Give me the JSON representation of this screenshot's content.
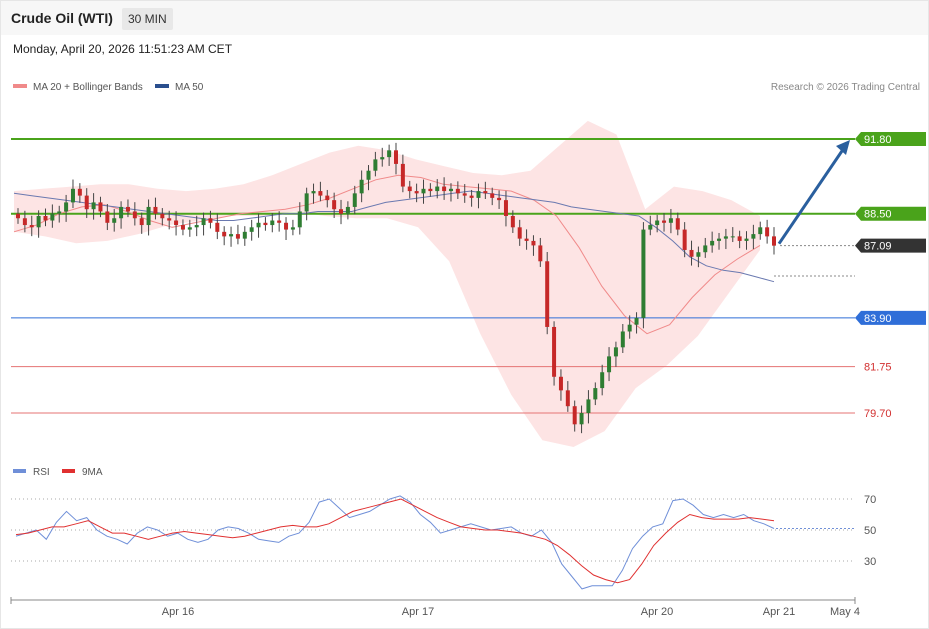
{
  "header": {
    "title": "Crude Oil (WTI)",
    "timeframe": "30 MIN",
    "datetime": "Monday, April 20, 2026 11:51:23 AM CET"
  },
  "legend": {
    "ma20_label": "MA 20 + Bollinger Bands",
    "ma50_label": "MA 50",
    "copyright": "Research © 2026 Trading Central",
    "rsi_label": "RSI",
    "rsi_ma_label": "9MA"
  },
  "colors": {
    "resistance": "#4aa31b",
    "support_blue": "#2f6ed8",
    "support_red": "#e57373",
    "bull_candle": "#2e7d32",
    "bear_candle": "#c62828",
    "bollinger_fill": "#fde4e4",
    "ma20": "#f08a8a",
    "ma50": "#6a79b0",
    "arrow": "#2a5f9e",
    "rsi_line": "#6f8fd8",
    "rsi_ma_line": "#e03030"
  },
  "chart_data": [
    {
      "type": "candlestick",
      "title": "Crude Oil (WTI)",
      "ylim": [
        77.5,
        93.0
      ],
      "x_ticks": [
        "Apr 16",
        "Apr 17",
        "Apr 20",
        "Apr 21",
        "May 4"
      ],
      "levels": [
        {
          "value": 91.8,
          "label": "91.80",
          "kind": "resistance"
        },
        {
          "value": 88.5,
          "label": "88.50",
          "kind": "resistance"
        },
        {
          "value": 87.09,
          "label": "87.09",
          "kind": "last_price"
        },
        {
          "value": 83.9,
          "label": "83.90",
          "kind": "support"
        },
        {
          "value": 81.75,
          "label": "81.75",
          "kind": "support"
        },
        {
          "value": 79.7,
          "label": "79.70",
          "kind": "support"
        }
      ],
      "closes": [
        88.3,
        88.0,
        87.9,
        88.4,
        88.2,
        88.5,
        88.6,
        89.0,
        89.6,
        89.3,
        88.7,
        89.0,
        88.6,
        88.1,
        88.3,
        88.8,
        88.6,
        88.3,
        88.0,
        88.8,
        88.5,
        88.3,
        88.2,
        88.0,
        87.8,
        87.9,
        88.0,
        88.3,
        88.1,
        87.7,
        87.5,
        87.6,
        87.4,
        87.7,
        87.9,
        88.1,
        88.0,
        88.2,
        88.1,
        87.8,
        87.9,
        88.6,
        89.4,
        89.5,
        89.3,
        89.1,
        88.7,
        88.5,
        88.8,
        89.4,
        90.0,
        90.4,
        90.9,
        91.0,
        91.3,
        90.7,
        89.7,
        89.5,
        89.4,
        89.6,
        89.5,
        89.7,
        89.5,
        89.6,
        89.4,
        89.3,
        89.2,
        89.5,
        89.4,
        89.2,
        89.1,
        88.4,
        87.9,
        87.4,
        87.3,
        87.1,
        86.4,
        83.5,
        81.3,
        80.7,
        80.0,
        79.2,
        79.7,
        80.3,
        80.8,
        81.5,
        82.2,
        82.6,
        83.3,
        83.6,
        83.9,
        87.8,
        88.0,
        88.2,
        88.1,
        88.3,
        87.8,
        86.9,
        86.6,
        86.8,
        87.1,
        87.3,
        87.4,
        87.5,
        87.5,
        87.3,
        87.4,
        87.6,
        87.9,
        87.5,
        87.09
      ],
      "ma50": [
        89.4,
        89.3,
        89.2,
        89.1,
        89.0,
        88.9,
        88.8,
        88.7,
        88.6,
        88.5,
        88.4,
        88.3,
        88.2,
        88.2,
        88.3,
        88.4,
        88.5,
        88.5,
        88.6,
        88.6,
        88.6,
        88.8,
        89.0,
        89.1,
        89.2,
        89.3,
        89.4,
        89.5,
        89.4,
        89.3,
        89.2,
        89.1,
        89.0,
        88.8,
        88.7,
        88.6,
        88.5,
        88.4,
        87.9,
        87.3,
        86.6,
        86.2,
        86.0,
        85.9,
        85.7,
        85.5
      ],
      "ma20": [
        87.7,
        88.0,
        88.5,
        88.8,
        88.9,
        88.6,
        88.2,
        87.9,
        88.1,
        88.3,
        88.5,
        88.6,
        88.7,
        88.9,
        89.2,
        89.6,
        90.0,
        90.2,
        90.1,
        89.8,
        89.7,
        89.6,
        89.5,
        89.1,
        88.4,
        87.0,
        85.3,
        84.0,
        83.2,
        83.6,
        84.8,
        85.8,
        86.5,
        87.1
      ],
      "bb_upper": [
        89.5,
        89.6,
        89.7,
        89.8,
        89.8,
        89.6,
        89.5,
        89.6,
        89.8,
        90.2,
        90.7,
        91.2,
        91.5,
        91.3,
        90.9,
        90.6,
        90.3,
        90.2,
        90.4,
        91.5,
        92.6,
        92.0,
        88.7,
        89.7,
        89.5,
        89.1,
        88.4
      ],
      "bb_lower": [
        87.7,
        87.5,
        87.2,
        87.3,
        87.6,
        88.0,
        88.2,
        88.4,
        88.4,
        88.6,
        88.4,
        88.3,
        88.3,
        87.9,
        86.4,
        83.2,
        80.5,
        78.5,
        78.2,
        78.9,
        80.8,
        81.8,
        83.1,
        85.0,
        86.9
      ],
      "arrow_target": 91.8
    },
    {
      "type": "line",
      "title": "RSI",
      "ylim": [
        10,
        80
      ],
      "y_ticks": [
        70,
        50,
        30
      ],
      "series": [
        {
          "name": "RSI",
          "values": [
            46,
            48,
            50,
            44,
            55,
            62,
            56,
            58,
            50,
            46,
            44,
            41,
            48,
            52,
            50,
            46,
            48,
            44,
            42,
            44,
            50,
            52,
            51,
            48,
            44,
            43,
            42,
            46,
            48,
            55,
            68,
            70,
            64,
            58,
            60,
            62,
            66,
            70,
            72,
            68,
            60,
            55,
            48,
            50,
            52,
            54,
            52,
            50,
            51,
            52,
            48,
            46,
            50,
            42,
            28,
            20,
            12,
            14,
            14,
            14,
            24,
            38,
            46,
            52,
            54,
            69,
            70,
            66,
            60,
            58,
            60,
            58,
            60,
            56,
            54,
            51
          ]
        },
        {
          "name": "9MA",
          "values": [
            47,
            48,
            50,
            52,
            52,
            54,
            56,
            52,
            48,
            48,
            46,
            44,
            46,
            48,
            49,
            48,
            47,
            46,
            45,
            46,
            48,
            50,
            52,
            53,
            52,
            52,
            54,
            58,
            62,
            64,
            66,
            68,
            70,
            66,
            62,
            58,
            55,
            52,
            51,
            50,
            50,
            49,
            48,
            46,
            44,
            40,
            34,
            27,
            21,
            18,
            16,
            18,
            28,
            40,
            48,
            55,
            60,
            58,
            57,
            57,
            57,
            58,
            57,
            56
          ]
        }
      ]
    }
  ]
}
